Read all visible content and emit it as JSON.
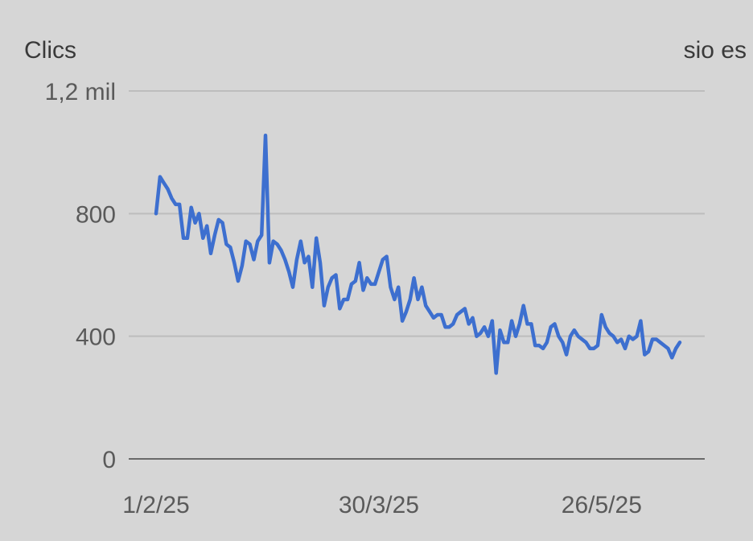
{
  "chart_data": {
    "type": "line",
    "left_series_label": "Clics",
    "right_series_label": "sio es",
    "y_ticks": [
      {
        "value": 0,
        "label": "0"
      },
      {
        "value": 400,
        "label": "400"
      },
      {
        "value": 800,
        "label": "800"
      },
      {
        "value": 1200,
        "label": "1,2 mil"
      }
    ],
    "ylim": [
      0,
      1200
    ],
    "x_ticks": [
      {
        "index": 0,
        "label": "1/2/25"
      },
      {
        "index": 57,
        "label": "30/3/25"
      },
      {
        "index": 114,
        "label": "26/5/25"
      }
    ],
    "x_start_label": "1/2/25",
    "series": [
      {
        "color": "#3d6fcf",
        "values": [
          800,
          920,
          900,
          880,
          850,
          830,
          830,
          720,
          720,
          820,
          770,
          800,
          720,
          760,
          670,
          730,
          780,
          770,
          700,
          690,
          640,
          580,
          630,
          710,
          700,
          650,
          710,
          730,
          1055,
          640,
          710,
          700,
          680,
          650,
          610,
          560,
          650,
          710,
          640,
          660,
          560,
          720,
          640,
          500,
          560,
          590,
          600,
          490,
          520,
          520,
          570,
          580,
          640,
          550,
          590,
          570,
          570,
          610,
          650,
          660,
          560,
          520,
          560,
          450,
          480,
          520,
          590,
          520,
          560,
          500,
          480,
          460,
          470,
          470,
          430,
          430,
          440,
          470,
          480,
          490,
          440,
          460,
          400,
          410,
          430,
          400,
          450,
          280,
          420,
          380,
          380,
          450,
          400,
          440,
          500,
          440,
          440,
          370,
          370,
          360,
          380,
          430,
          440,
          400,
          380,
          340,
          400,
          420,
          400,
          390,
          380,
          360,
          360,
          370,
          470,
          430,
          410,
          400,
          380,
          390,
          360,
          400,
          390,
          400,
          450,
          340,
          350,
          390,
          390,
          380,
          370,
          360,
          330,
          360,
          380
        ]
      }
    ]
  }
}
